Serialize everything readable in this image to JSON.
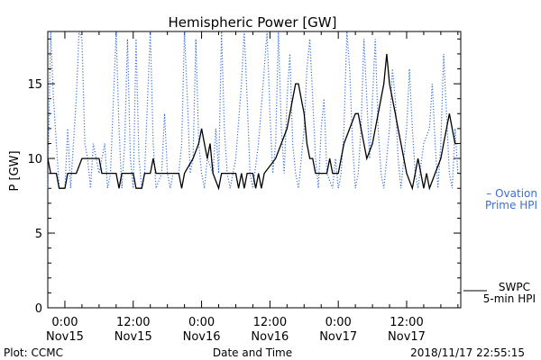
{
  "chart_data": {
    "type": "line",
    "title": "Hemispheric Power [GW]",
    "ylabel": "P [GW]",
    "xlabel": "Date and Time",
    "ylim": [
      0,
      18.5
    ],
    "xlim_hours": [
      -3,
      69.5
    ],
    "yticks": [
      0,
      5,
      10,
      15
    ],
    "xticks": [
      {
        "time": "0:00",
        "day": "Nov15",
        "hour": 0
      },
      {
        "time": "12:00",
        "day": "Nov15",
        "hour": 12
      },
      {
        "time": "0:00",
        "day": "Nov16",
        "hour": 24
      },
      {
        "time": "12:00",
        "day": "Nov16",
        "hour": 36
      },
      {
        "time": "0:00",
        "day": "Nov17",
        "hour": 48
      },
      {
        "time": "12:00",
        "day": "Nov17",
        "hour": 60
      }
    ],
    "grid": false,
    "legend": [
      {
        "line1": "– Ovation",
        "line2": "Prime HPI",
        "color": "#3a6fd8",
        "style": "dotted"
      },
      {
        "line1": "SWPC",
        "line2": "5-min HPI",
        "color": "#000000",
        "style": "solid"
      }
    ],
    "series": [
      {
        "name": "SWPC 5-min HPI",
        "color": "#000000",
        "style": "solid",
        "points": [
          [
            -3,
            10
          ],
          [
            -2.5,
            9
          ],
          [
            -1.5,
            9
          ],
          [
            -1,
            8
          ],
          [
            0,
            8
          ],
          [
            0.5,
            9
          ],
          [
            2,
            9
          ],
          [
            3,
            10
          ],
          [
            6,
            10
          ],
          [
            6.5,
            9
          ],
          [
            9,
            9
          ],
          [
            9.5,
            8
          ],
          [
            10,
            9
          ],
          [
            12,
            9
          ],
          [
            12.5,
            8
          ],
          [
            13.5,
            8
          ],
          [
            14,
            9
          ],
          [
            15,
            9
          ],
          [
            15.5,
            10
          ],
          [
            16,
            9
          ],
          [
            20,
            9
          ],
          [
            20.5,
            8
          ],
          [
            21,
            9
          ],
          [
            22.5,
            10
          ],
          [
            23.5,
            11
          ],
          [
            24,
            12
          ],
          [
            24.5,
            11
          ],
          [
            25,
            10
          ],
          [
            25.5,
            11
          ],
          [
            26,
            9
          ],
          [
            27,
            8
          ],
          [
            27.5,
            9
          ],
          [
            30,
            9
          ],
          [
            30.5,
            8
          ],
          [
            31,
            9
          ],
          [
            31.5,
            8
          ],
          [
            32,
            9
          ],
          [
            33,
            9
          ],
          [
            33.5,
            8
          ],
          [
            34,
            9
          ],
          [
            34.5,
            8
          ],
          [
            35,
            9
          ],
          [
            37,
            10
          ],
          [
            38,
            11
          ],
          [
            39,
            12
          ],
          [
            39.5,
            13
          ],
          [
            40,
            14
          ],
          [
            40.5,
            15
          ],
          [
            41,
            15
          ],
          [
            41.5,
            14
          ],
          [
            42,
            13
          ],
          [
            42.5,
            11
          ],
          [
            43,
            10
          ],
          [
            43.5,
            10
          ],
          [
            44,
            9
          ],
          [
            46,
            9
          ],
          [
            46.5,
            10
          ],
          [
            47,
            9
          ],
          [
            48,
            9
          ],
          [
            48.5,
            10
          ],
          [
            49,
            11
          ],
          [
            50,
            12
          ],
          [
            51,
            13
          ],
          [
            51.5,
            13
          ],
          [
            52,
            12
          ],
          [
            53,
            10
          ],
          [
            54,
            11
          ],
          [
            55,
            13
          ],
          [
            56,
            15
          ],
          [
            56.5,
            17
          ],
          [
            57,
            15
          ],
          [
            58,
            13
          ],
          [
            58.5,
            12
          ],
          [
            59,
            11
          ],
          [
            60,
            9
          ],
          [
            61,
            8
          ],
          [
            61.5,
            9
          ],
          [
            62,
            10
          ],
          [
            62.5,
            9
          ],
          [
            63,
            8
          ],
          [
            63.5,
            9
          ],
          [
            64,
            8
          ],
          [
            65,
            9
          ],
          [
            66,
            10
          ],
          [
            66.5,
            11
          ],
          [
            67,
            12
          ],
          [
            67.5,
            13
          ],
          [
            68,
            12
          ],
          [
            68.5,
            11
          ],
          [
            69,
            11
          ]
        ]
      },
      {
        "name": "Ovation Prime HPI",
        "color": "#3a6fd8",
        "style": "dotted",
        "points": [
          [
            -3,
            8
          ],
          [
            -2.5,
            18.5
          ],
          [
            -2,
            14
          ],
          [
            -1.5,
            11
          ],
          [
            -1,
            8
          ],
          [
            0,
            8
          ],
          [
            0.5,
            12
          ],
          [
            1,
            8
          ],
          [
            2,
            14
          ],
          [
            2.5,
            18.5
          ],
          [
            3,
            18
          ],
          [
            3.5,
            11
          ],
          [
            4,
            10
          ],
          [
            4.5,
            8
          ],
          [
            5,
            11
          ],
          [
            6,
            9
          ],
          [
            7,
            11
          ],
          [
            7.5,
            8
          ],
          [
            8,
            9
          ],
          [
            9,
            18.5
          ],
          [
            9.5,
            12
          ],
          [
            10,
            8
          ],
          [
            10.5,
            11
          ],
          [
            11,
            18
          ],
          [
            11.5,
            10
          ],
          [
            12,
            8
          ],
          [
            12.5,
            18
          ],
          [
            13,
            10
          ],
          [
            13.5,
            8
          ],
          [
            14,
            9
          ],
          [
            15,
            18.5
          ],
          [
            15.5,
            11
          ],
          [
            16,
            8
          ],
          [
            17,
            9
          ],
          [
            17.5,
            13
          ],
          [
            18,
            9
          ],
          [
            18.5,
            8
          ],
          [
            19,
            9
          ],
          [
            20,
            9
          ],
          [
            20.5,
            11
          ],
          [
            21,
            18.5
          ],
          [
            21.5,
            14
          ],
          [
            22,
            9
          ],
          [
            22.5,
            10
          ],
          [
            23,
            18
          ],
          [
            23.5,
            11
          ],
          [
            24,
            9
          ],
          [
            24.5,
            8
          ],
          [
            25,
            10
          ],
          [
            26,
            9
          ],
          [
            26.5,
            12
          ],
          [
            27,
            9
          ],
          [
            27.5,
            18.5
          ],
          [
            28,
            12
          ],
          [
            28.5,
            9
          ],
          [
            29,
            8
          ],
          [
            30,
            10
          ],
          [
            31,
            15
          ],
          [
            31.5,
            18.5
          ],
          [
            32,
            14
          ],
          [
            32.5,
            9
          ],
          [
            33,
            8
          ],
          [
            34,
            11
          ],
          [
            35,
            16
          ],
          [
            35.5,
            18.5
          ],
          [
            36,
            13
          ],
          [
            36.5,
            9
          ],
          [
            37,
            11
          ],
          [
            37.5,
            18.5
          ],
          [
            38,
            12
          ],
          [
            38.5,
            9
          ],
          [
            39,
            14
          ],
          [
            39.5,
            17
          ],
          [
            40,
            11
          ],
          [
            40.5,
            9
          ],
          [
            41,
            8
          ],
          [
            42,
            12
          ],
          [
            42.5,
            16
          ],
          [
            43,
            18
          ],
          [
            43.5,
            14
          ],
          [
            44,
            10
          ],
          [
            44.5,
            8
          ],
          [
            45,
            12
          ],
          [
            45.5,
            14
          ],
          [
            46,
            9
          ],
          [
            47,
            8
          ],
          [
            47.5,
            10
          ],
          [
            48,
            8
          ],
          [
            48.5,
            9
          ],
          [
            49,
            12
          ],
          [
            49.5,
            18.5
          ],
          [
            50,
            16
          ],
          [
            50.5,
            11
          ],
          [
            51,
            8
          ],
          [
            51.5,
            9
          ],
          [
            52,
            12
          ],
          [
            52.5,
            18
          ],
          [
            53,
            14
          ],
          [
            53.5,
            10
          ],
          [
            54,
            14
          ],
          [
            54.5,
            18
          ],
          [
            55,
            12
          ],
          [
            55.5,
            9
          ],
          [
            56,
            8
          ],
          [
            57,
            12
          ],
          [
            57.5,
            16
          ],
          [
            58,
            14
          ],
          [
            58.5,
            10
          ],
          [
            59,
            8
          ],
          [
            60,
            12
          ],
          [
            60.5,
            16
          ],
          [
            61,
            12
          ],
          [
            61.5,
            9
          ],
          [
            62,
            8
          ],
          [
            63,
            11
          ],
          [
            64,
            12
          ],
          [
            64.5,
            15
          ],
          [
            65,
            11
          ],
          [
            65.5,
            8
          ],
          [
            66,
            11
          ],
          [
            66.5,
            17
          ],
          [
            67,
            13
          ],
          [
            67.5,
            9
          ],
          [
            68,
            8
          ],
          [
            68.5,
            12
          ],
          [
            69,
            9
          ]
        ]
      }
    ]
  },
  "footer": {
    "left": "Plot: CCMC",
    "center": "Date and Time",
    "right": "2018/11/17 22:55:15"
  }
}
